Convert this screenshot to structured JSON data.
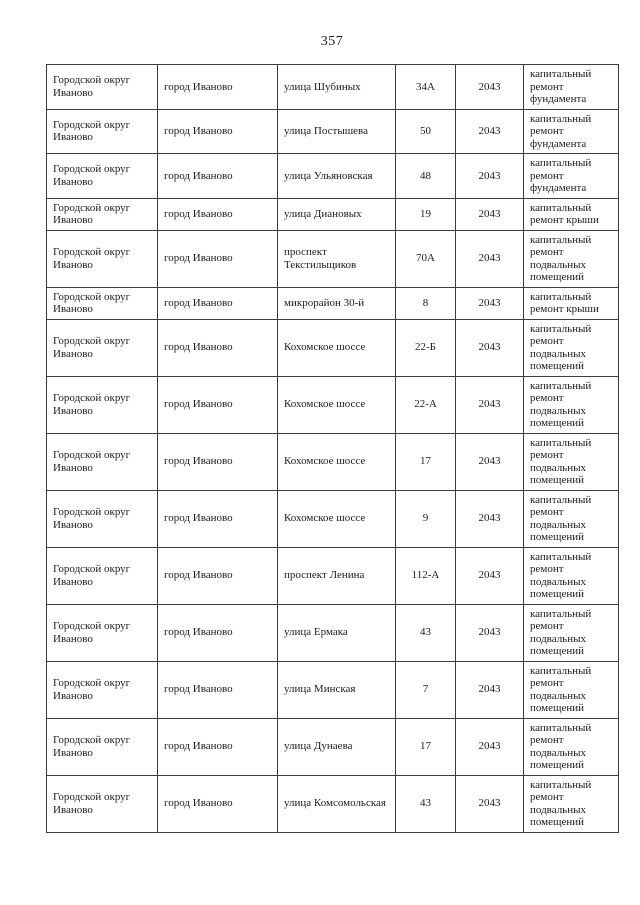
{
  "page": {
    "number": "357"
  },
  "table": {
    "rows": [
      {
        "district": "Городской округ Иваново",
        "city": "город Иваново",
        "street": "улица Шубиных",
        "house": "34А",
        "year": "2043",
        "work": "капитальный ремонт фундамента"
      },
      {
        "district": "Городской округ Иваново",
        "city": "город Иваново",
        "street": "улица Постышева",
        "house": "50",
        "year": "2043",
        "work": "капитальный ремонт фундамента"
      },
      {
        "district": "Городской округ Иваново",
        "city": "город Иваново",
        "street": "улица Ульяновская",
        "house": "48",
        "year": "2043",
        "work": "капитальный ремонт фундамента"
      },
      {
        "district": "Городской округ Иваново",
        "city": "город Иваново",
        "street": "улица Диановых",
        "house": "19",
        "year": "2043",
        "work": "капитальный ремонт крыши"
      },
      {
        "district": "Городской округ Иваново",
        "city": "город Иваново",
        "street": "проспект Текстильщиков",
        "house": "70А",
        "year": "2043",
        "work": "капитальный ремонт подвальных помещений"
      },
      {
        "district": "Городской округ Иваново",
        "city": "город Иваново",
        "street": "микрорайон 30-й",
        "house": "8",
        "year": "2043",
        "work": "капитальный ремонт крыши"
      },
      {
        "district": "Городской округ Иваново",
        "city": "город Иваново",
        "street": "Кохомское шоссе",
        "house": "22-Б",
        "year": "2043",
        "work": "капитальный ремонт подвальных помещений"
      },
      {
        "district": "Городской округ Иваново",
        "city": "город Иваново",
        "street": "Кохомское шоссе",
        "house": "22-А",
        "year": "2043",
        "work": "капитальный ремонт подвальных помещений"
      },
      {
        "district": "Городской округ Иваново",
        "city": "город Иваново",
        "street": "Кохомское шоссе",
        "house": "17",
        "year": "2043",
        "work": "капитальный ремонт подвальных помещений"
      },
      {
        "district": "Городской округ Иваново",
        "city": "город Иваново",
        "street": "Кохомское шоссе",
        "house": "9",
        "year": "2043",
        "work": "капитальный ремонт подвальных помещений"
      },
      {
        "district": "Городской округ Иваново",
        "city": "город Иваново",
        "street": "проспект Ленина",
        "house": "112-А",
        "year": "2043",
        "work": "капитальный ремонт подвальных помещений"
      },
      {
        "district": "Городской округ Иваново",
        "city": "город Иваново",
        "street": "улица Ермака",
        "house": "43",
        "year": "2043",
        "work": "капитальный ремонт подвальных помещений"
      },
      {
        "district": "Городской округ Иваново",
        "city": "город Иваново",
        "street": "улица Минская",
        "house": "7",
        "year": "2043",
        "work": "капитальный ремонт подвальных помещений"
      },
      {
        "district": "Городской округ Иваново",
        "city": "город Иваново",
        "street": "улица Дунаева",
        "house": "17",
        "year": "2043",
        "work": "капитальный ремонт подвальных помещений"
      },
      {
        "district": "Городской округ Иваново",
        "city": "город Иваново",
        "street": "улица Комсомольская",
        "house": "43",
        "year": "2043",
        "work": "капитальный ремонт подвальных помещений"
      }
    ]
  }
}
